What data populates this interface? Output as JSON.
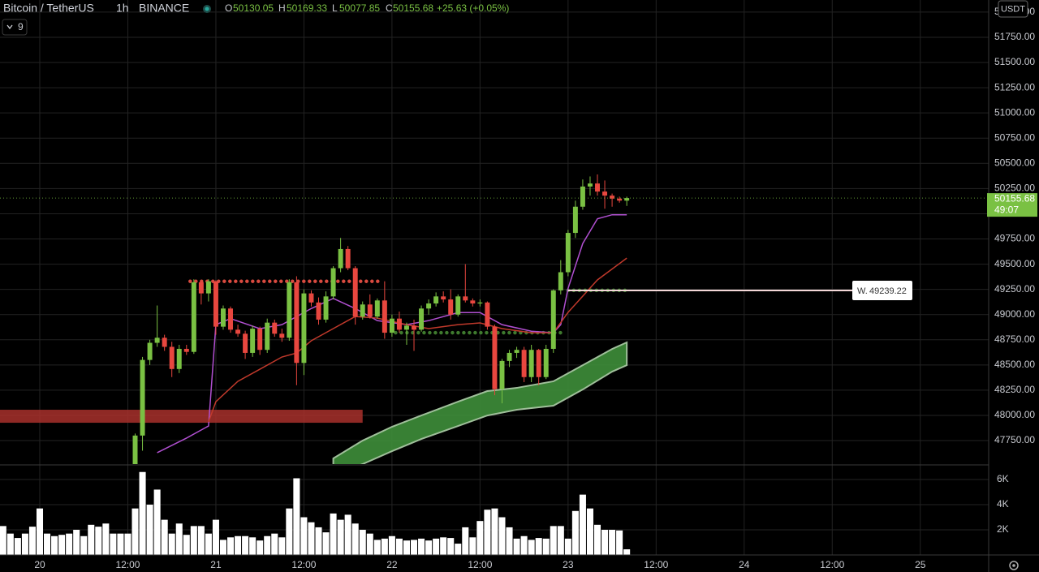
{
  "header": {
    "symbol": "Bitcoin / TetherUS",
    "interval": "1h",
    "exchange": "BINANCE",
    "o_label": "O",
    "h_label": "H",
    "l_label": "L",
    "c_label": "C",
    "change": "+25.63 (+0.05%)",
    "indicator_count": "9",
    "currency": "USDT",
    "countdown": "49:07"
  },
  "chart_data": [
    {
      "type": "candlestick",
      "up_color": "#7ac143",
      "down_color": "#e8473f",
      "grid": true,
      "x": [
        13,
        14,
        15,
        16,
        17,
        18,
        19,
        20,
        21,
        22,
        23,
        24,
        25,
        26,
        27,
        28,
        29,
        30,
        31,
        32,
        33,
        34,
        35,
        36,
        37,
        38,
        39,
        40,
        41,
        42,
        43,
        44,
        45,
        46,
        47,
        48,
        49,
        50,
        51,
        52,
        53,
        54,
        55,
        56,
        57,
        58,
        59,
        60,
        61,
        62,
        63,
        64,
        65,
        66,
        67,
        68,
        69,
        70,
        71,
        72,
        73,
        74,
        75,
        76,
        77,
        78,
        79,
        80
      ],
      "open": [
        47450,
        47800,
        48550,
        48720,
        48770,
        48680,
        48460,
        48660,
        48630,
        49320,
        49210,
        49330,
        48880,
        49060,
        48850,
        48810,
        48620,
        48860,
        48650,
        48920,
        48810,
        48770,
        49320,
        48520,
        49210,
        49120,
        48950,
        49180,
        49460,
        49650,
        49460,
        48980,
        49100,
        48980,
        49140,
        48820,
        48960,
        48850,
        48890,
        48850,
        49060,
        49110,
        49180,
        49150,
        49000,
        49180,
        49140,
        49110,
        49120,
        48880,
        48260,
        48540,
        48620,
        48650,
        48380,
        48650,
        48380,
        48660,
        49240,
        49420,
        49810,
        50070,
        50270,
        50300,
        50220,
        50180,
        50150,
        50130.05
      ],
      "high": [
        47820,
        48580,
        48750,
        49090,
        48800,
        48730,
        48700,
        48700,
        49350,
        49340,
        49350,
        49340,
        49090,
        49080,
        48900,
        48840,
        48890,
        48880,
        48960,
        48950,
        48860,
        49350,
        49380,
        49250,
        49240,
        49170,
        49230,
        49480,
        49760,
        49680,
        49480,
        49130,
        49200,
        49160,
        49330,
        49000,
        49030,
        48920,
        48950,
        49090,
        49150,
        49220,
        49230,
        49250,
        49200,
        49500,
        49160,
        49150,
        49130,
        48900,
        48560,
        48650,
        48680,
        48680,
        48700,
        48660,
        48700,
        49250,
        49540,
        49840,
        50130,
        50340,
        50370,
        50390,
        50330,
        50200,
        50170,
        50169.33
      ],
      "low": [
        47380,
        47650,
        48500,
        48680,
        48640,
        48380,
        48420,
        48600,
        48610,
        49100,
        49130,
        48800,
        48850,
        48820,
        48780,
        48560,
        48580,
        48600,
        48620,
        48780,
        48730,
        48740,
        48300,
        48400,
        49080,
        48900,
        48920,
        49150,
        49420,
        49440,
        48900,
        48950,
        48960,
        48960,
        48760,
        48780,
        48820,
        48700,
        48640,
        48830,
        49000,
        49080,
        49120,
        48950,
        48980,
        49120,
        49080,
        49080,
        48850,
        48200,
        48120,
        48480,
        48570,
        48330,
        48330,
        48300,
        48360,
        48620,
        49200,
        49380,
        49760,
        50040,
        50180,
        50180,
        50050,
        50070,
        50110,
        50077.85
      ],
      "close": [
        47800,
        48550,
        48720,
        48770,
        48680,
        48460,
        48660,
        48630,
        49320,
        49210,
        49330,
        48880,
        49060,
        48850,
        48810,
        48620,
        48860,
        48650,
        48920,
        48810,
        48770,
        49320,
        48520,
        49210,
        49120,
        48950,
        49180,
        49460,
        49650,
        49460,
        48980,
        49100,
        48980,
        49140,
        48820,
        48960,
        48850,
        48890,
        48850,
        49060,
        49110,
        49180,
        49150,
        49000,
        49180,
        49140,
        49110,
        49120,
        48880,
        48260,
        48540,
        48620,
        48650,
        48380,
        48650,
        48380,
        48660,
        49240,
        49420,
        49810,
        50070,
        50270,
        50300,
        50220,
        50180,
        50150,
        50130.05,
        50155.68
      ],
      "xlim": [
        -5.42,
        129.32
      ],
      "xticks": [
        {
          "value": 0,
          "label": "20"
        },
        {
          "value": 12,
          "label": "12:00"
        },
        {
          "value": 24,
          "label": "21"
        },
        {
          "value": 36,
          "label": "12:00"
        },
        {
          "value": 48,
          "label": "22"
        },
        {
          "value": 60,
          "label": "12:00"
        },
        {
          "value": 72,
          "label": "23"
        },
        {
          "value": 84,
          "label": "12:00"
        },
        {
          "value": 96,
          "label": "24"
        },
        {
          "value": 108,
          "label": "12:00"
        },
        {
          "value": 120,
          "label": "25"
        }
      ],
      "ylim": [
        47517,
        52120
      ],
      "yticks": [
        {
          "value": 47750,
          "label": "47750.00"
        },
        {
          "value": 48000,
          "label": "48000.00"
        },
        {
          "value": 48250,
          "label": "48250.00"
        },
        {
          "value": 48500,
          "label": "48500.00"
        },
        {
          "value": 48750,
          "label": "48750.00"
        },
        {
          "value": 49000,
          "label": "49000.00"
        },
        {
          "value": 49250,
          "label": "49250.00"
        },
        {
          "value": 49500,
          "label": "49500.00"
        },
        {
          "value": 49750,
          "label": "49750.00"
        },
        {
          "value": 50000,
          "label": "50000.00"
        },
        {
          "value": 50250,
          "label": "50250.00"
        },
        {
          "value": 50500,
          "label": "50500.00"
        },
        {
          "value": 50750,
          "label": "50750.00"
        },
        {
          "value": 51000,
          "label": "51000.00"
        },
        {
          "value": 51250,
          "label": "51250.00"
        },
        {
          "value": 51500,
          "label": "51500.00"
        },
        {
          "value": 51750,
          "label": "51750.00"
        },
        {
          "value": 52000,
          "label": "52000.00"
        }
      ],
      "lines": [
        {
          "color": "#b04fd0",
          "x": [
            16,
            20,
            23,
            24,
            26,
            30,
            33,
            37,
            40,
            43,
            46,
            50,
            53,
            57,
            60,
            63,
            67,
            70,
            71,
            72,
            74,
            76,
            78,
            80
          ],
          "values": [
            47630,
            47775,
            47895,
            48900,
            48960,
            48860,
            48900,
            49060,
            49160,
            49060,
            48940,
            48900,
            48940,
            49020,
            49020,
            48900,
            48835,
            48820,
            48900,
            49260,
            49705,
            49950,
            49990,
            49990
          ]
        },
        {
          "color": "#c0392b",
          "x": [
            23,
            24,
            27,
            30,
            33,
            35,
            37,
            40,
            43,
            46,
            50,
            53,
            57,
            60,
            63,
            67,
            70,
            72,
            74,
            76,
            80
          ],
          "values": [
            47935,
            48136,
            48338,
            48458,
            48579,
            48619,
            48740,
            48861,
            48981,
            48965,
            48900,
            48861,
            48900,
            48917,
            48861,
            48820,
            48820,
            49022,
            49183,
            49344,
            49560
          ]
        }
      ],
      "band": {
        "color": "#3e8e3a",
        "x": [
          40,
          44,
          48,
          52,
          57,
          61,
          65,
          70,
          74,
          78,
          80
        ],
        "upper": [
          47573,
          47750,
          47887,
          47999,
          48136,
          48241,
          48273,
          48338,
          48498,
          48659,
          48724
        ],
        "lower": [
          47412,
          47517,
          47645,
          47766,
          47895,
          47999,
          48056,
          48096,
          48257,
          48434,
          48498
        ]
      },
      "zone": {
        "color": "#a8302c",
        "x": [
          -6,
          44
        ],
        "low": 47927,
        "high": 48056
      },
      "levels": [
        {
          "color": "#d84a3f",
          "x": [
            20.5,
            46.5
          ],
          "value": 49330
        },
        {
          "color": "#3f7a2e",
          "x": [
            48.5,
            71
          ],
          "value": 48820
        },
        {
          "color": "#3f7a2e",
          "x": [
            72,
            80
          ],
          "value": 49240
        }
      ],
      "alert": {
        "label": "W.",
        "value": 49239.22,
        "x": 72
      }
    },
    {
      "type": "bar",
      "color": "#ffffff",
      "x": [
        -5,
        -4,
        -3,
        -2,
        -1,
        0,
        1,
        2,
        3,
        4,
        5,
        6,
        7,
        8,
        9,
        10,
        11,
        12,
        13,
        14,
        15,
        16,
        17,
        18,
        19,
        20,
        21,
        22,
        23,
        24,
        25,
        26,
        27,
        28,
        29,
        30,
        31,
        32,
        33,
        34,
        35,
        36,
        37,
        38,
        39,
        40,
        41,
        42,
        43,
        44,
        45,
        46,
        47,
        48,
        49,
        50,
        51,
        52,
        53,
        54,
        55,
        56,
        57,
        58,
        59,
        60,
        61,
        62,
        63,
        64,
        65,
        66,
        67,
        68,
        69,
        70,
        71,
        72,
        73,
        74,
        75,
        76,
        77,
        78,
        79,
        80
      ],
      "values": [
        2300,
        1700,
        1350,
        1700,
        2250,
        3700,
        1700,
        1500,
        1600,
        1700,
        2000,
        1500,
        2400,
        2250,
        2500,
        1700,
        1700,
        1700,
        3700,
        6600,
        4000,
        5200,
        2800,
        1700,
        2500,
        1600,
        2300,
        2300,
        1700,
        2800,
        1200,
        1400,
        1500,
        1500,
        1400,
        1150,
        1500,
        1700,
        1400,
        3700,
        6100,
        3000,
        2600,
        2200,
        1800,
        3300,
        2800,
        3200,
        2500,
        2000,
        1700,
        1200,
        1300,
        1500,
        1300,
        1150,
        1200,
        1300,
        1150,
        1300,
        1400,
        1350,
        900,
        2200,
        1400,
        2700,
        3600,
        3700,
        3000,
        2200,
        1300,
        1500,
        1200,
        1350,
        1300,
        2300,
        2300,
        1300,
        3500,
        4800,
        3700,
        2400,
        2000,
        2000,
        1950,
        450
      ],
      "ylim": [
        0,
        7100
      ],
      "yticks": [
        {
          "value": 2000,
          "label": "2K"
        },
        {
          "value": 4000,
          "label": "4K"
        },
        {
          "value": 6000,
          "label": "6K"
        }
      ],
      "grid": true
    }
  ]
}
